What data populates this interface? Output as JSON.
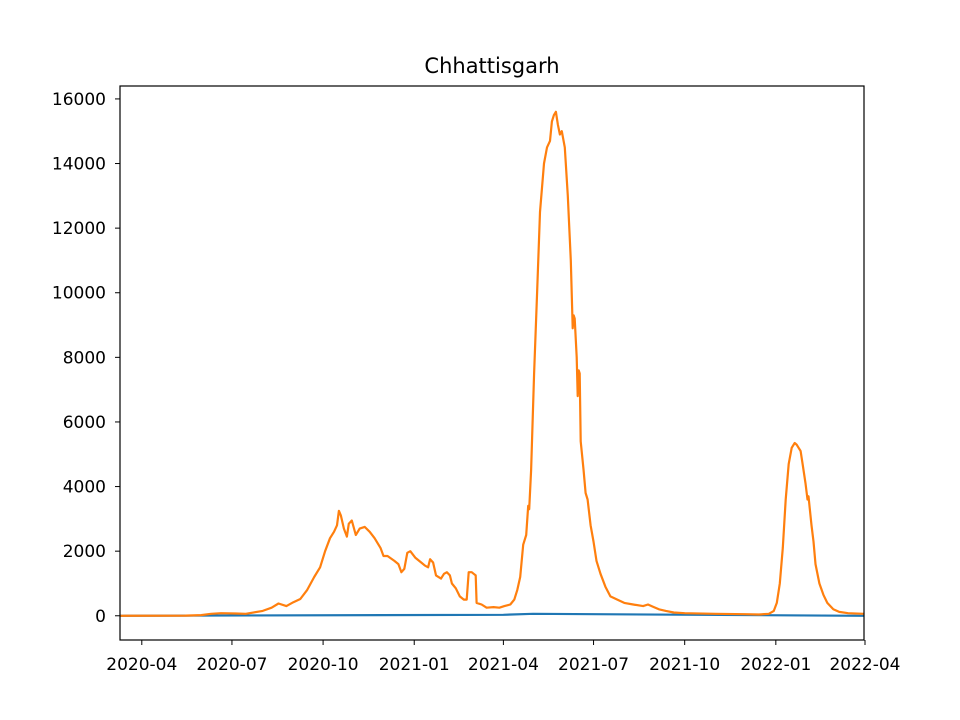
{
  "chart_data": {
    "type": "line",
    "title": "Chhattisgarh",
    "xlabel": "",
    "ylabel": "",
    "x_range": [
      "2020-03-10",
      "2022-03-31"
    ],
    "ylim": [
      -750,
      16400
    ],
    "grid": false,
    "legend": "none",
    "x_ticks": [
      {
        "date": "2020-04-01",
        "label": "2020-04"
      },
      {
        "date": "2020-07-01",
        "label": "2020-07"
      },
      {
        "date": "2020-10-01",
        "label": "2020-10"
      },
      {
        "date": "2021-01-01",
        "label": "2021-01"
      },
      {
        "date": "2021-04-01",
        "label": "2021-04"
      },
      {
        "date": "2021-07-01",
        "label": "2021-07"
      },
      {
        "date": "2021-10-01",
        "label": "2021-10"
      },
      {
        "date": "2022-01-01",
        "label": "2022-01"
      },
      {
        "date": "2022-04-01",
        "label": "2022-04"
      }
    ],
    "y_ticks": [
      0,
      2000,
      4000,
      6000,
      8000,
      10000,
      12000,
      14000,
      16000
    ],
    "series": [
      {
        "color": "#1f77b4",
        "points": [
          [
            "2020-03-10",
            0
          ],
          [
            "2021-04-01",
            30
          ],
          [
            "2021-05-01",
            60
          ],
          [
            "2022-03-31",
            0
          ]
        ]
      },
      {
        "color": "#ff7f0e",
        "points": [
          [
            "2020-03-10",
            0
          ],
          [
            "2020-05-15",
            5
          ],
          [
            "2020-05-31",
            20
          ],
          [
            "2020-06-10",
            60
          ],
          [
            "2020-06-20",
            80
          ],
          [
            "2020-07-05",
            70
          ],
          [
            "2020-07-15",
            60
          ],
          [
            "2020-08-01",
            150
          ],
          [
            "2020-08-10",
            250
          ],
          [
            "2020-08-17",
            380
          ],
          [
            "2020-08-25",
            300
          ],
          [
            "2020-09-01",
            420
          ],
          [
            "2020-09-08",
            520
          ],
          [
            "2020-09-15",
            800
          ],
          [
            "2020-09-22",
            1200
          ],
          [
            "2020-09-28",
            1500
          ],
          [
            "2020-10-03",
            2000
          ],
          [
            "2020-10-08",
            2400
          ],
          [
            "2020-10-12",
            2600
          ],
          [
            "2020-10-15",
            2800
          ],
          [
            "2020-10-17",
            3250
          ],
          [
            "2020-10-19",
            3100
          ],
          [
            "2020-10-22",
            2700
          ],
          [
            "2020-10-25",
            2450
          ],
          [
            "2020-10-27",
            2850
          ],
          [
            "2020-10-30",
            2950
          ],
          [
            "2020-11-03",
            2500
          ],
          [
            "2020-11-07",
            2700
          ],
          [
            "2020-11-12",
            2750
          ],
          [
            "2020-11-17",
            2600
          ],
          [
            "2020-11-22",
            2400
          ],
          [
            "2020-11-28",
            2100
          ],
          [
            "2020-12-01",
            1850
          ],
          [
            "2020-12-05",
            1850
          ],
          [
            "2020-12-12",
            1700
          ],
          [
            "2020-12-16",
            1600
          ],
          [
            "2020-12-19",
            1350
          ],
          [
            "2020-12-22",
            1450
          ],
          [
            "2020-12-25",
            1950
          ],
          [
            "2020-12-28",
            2000
          ],
          [
            "2021-01-02",
            1800
          ],
          [
            "2021-01-08",
            1650
          ],
          [
            "2021-01-12",
            1550
          ],
          [
            "2021-01-15",
            1500
          ],
          [
            "2021-01-17",
            1750
          ],
          [
            "2021-01-20",
            1650
          ],
          [
            "2021-01-23",
            1250
          ],
          [
            "2021-01-28",
            1150
          ],
          [
            "2021-01-31",
            1300
          ],
          [
            "2021-02-03",
            1350
          ],
          [
            "2021-02-06",
            1250
          ],
          [
            "2021-02-08",
            1000
          ],
          [
            "2021-02-12",
            850
          ],
          [
            "2021-02-16",
            600
          ],
          [
            "2021-02-20",
            500
          ],
          [
            "2021-02-23",
            500
          ],
          [
            "2021-02-25",
            1350
          ],
          [
            "2021-02-28",
            1350
          ],
          [
            "2021-03-02",
            1300
          ],
          [
            "2021-03-04",
            1250
          ],
          [
            "2021-03-05",
            400
          ],
          [
            "2021-03-10",
            350
          ],
          [
            "2021-03-15",
            250
          ],
          [
            "2021-03-22",
            270
          ],
          [
            "2021-03-28",
            250
          ],
          [
            "2021-04-02",
            300
          ],
          [
            "2021-04-08",
            350
          ],
          [
            "2021-04-12",
            500
          ],
          [
            "2021-04-15",
            800
          ],
          [
            "2021-04-18",
            1200
          ],
          [
            "2021-04-21",
            2200
          ],
          [
            "2021-04-24",
            2500
          ],
          [
            "2021-04-26",
            3400
          ],
          [
            "2021-04-27",
            3300
          ],
          [
            "2021-04-29",
            4500
          ],
          [
            "2021-05-02",
            7500
          ],
          [
            "2021-05-05",
            10000
          ],
          [
            "2021-05-08",
            12500
          ],
          [
            "2021-05-12",
            14000
          ],
          [
            "2021-05-15",
            14500
          ],
          [
            "2021-05-18",
            14700
          ],
          [
            "2021-05-20",
            15300
          ],
          [
            "2021-05-22",
            15500
          ],
          [
            "2021-05-24",
            15600
          ],
          [
            "2021-05-26",
            15200
          ],
          [
            "2021-05-28",
            14900
          ],
          [
            "2021-05-30",
            15000
          ],
          [
            "2021-06-02",
            14500
          ],
          [
            "2021-06-05",
            13000
          ],
          [
            "2021-06-08",
            11000
          ],
          [
            "2021-06-10",
            8900
          ],
          [
            "2021-06-11",
            9300
          ],
          [
            "2021-06-12",
            9200
          ],
          [
            "2021-06-14",
            8000
          ],
          [
            "2021-06-15",
            6800
          ],
          [
            "2021-06-16",
            7600
          ],
          [
            "2021-06-17",
            7500
          ],
          [
            "2021-06-18",
            5400
          ],
          [
            "2021-06-21",
            4500
          ],
          [
            "2021-06-23",
            3800
          ],
          [
            "2021-06-25",
            3600
          ],
          [
            "2021-06-28",
            2800
          ],
          [
            "2021-07-01",
            2300
          ],
          [
            "2021-07-04",
            1700
          ],
          [
            "2021-07-08",
            1300
          ],
          [
            "2021-07-13",
            900
          ],
          [
            "2021-07-18",
            600
          ],
          [
            "2021-07-25",
            500
          ],
          [
            "2021-08-01",
            400
          ],
          [
            "2021-08-10",
            350
          ],
          [
            "2021-08-20",
            300
          ],
          [
            "2021-08-25",
            350
          ],
          [
            "2021-08-30",
            280
          ],
          [
            "2021-09-05",
            200
          ],
          [
            "2021-09-12",
            150
          ],
          [
            "2021-09-20",
            100
          ],
          [
            "2021-10-01",
            80
          ],
          [
            "2021-11-01",
            60
          ],
          [
            "2021-12-01",
            50
          ],
          [
            "2021-12-15",
            40
          ],
          [
            "2021-12-25",
            60
          ],
          [
            "2021-12-30",
            150
          ],
          [
            "2022-01-02",
            400
          ],
          [
            "2022-01-05",
            1000
          ],
          [
            "2022-01-08",
            2100
          ],
          [
            "2022-01-11",
            3600
          ],
          [
            "2022-01-14",
            4700
          ],
          [
            "2022-01-17",
            5200
          ],
          [
            "2022-01-20",
            5350
          ],
          [
            "2022-01-22",
            5300
          ],
          [
            "2022-01-24",
            5200
          ],
          [
            "2022-01-26",
            5100
          ],
          [
            "2022-01-28",
            4700
          ],
          [
            "2022-01-31",
            4100
          ],
          [
            "2022-02-02",
            3600
          ],
          [
            "2022-02-03",
            3700
          ],
          [
            "2022-02-06",
            2800
          ],
          [
            "2022-02-08",
            2300
          ],
          [
            "2022-02-10",
            1600
          ],
          [
            "2022-02-14",
            1000
          ],
          [
            "2022-02-18",
            650
          ],
          [
            "2022-02-22",
            400
          ],
          [
            "2022-02-28",
            200
          ],
          [
            "2022-03-06",
            120
          ],
          [
            "2022-03-15",
            80
          ],
          [
            "2022-03-31",
            60
          ]
        ]
      }
    ]
  }
}
